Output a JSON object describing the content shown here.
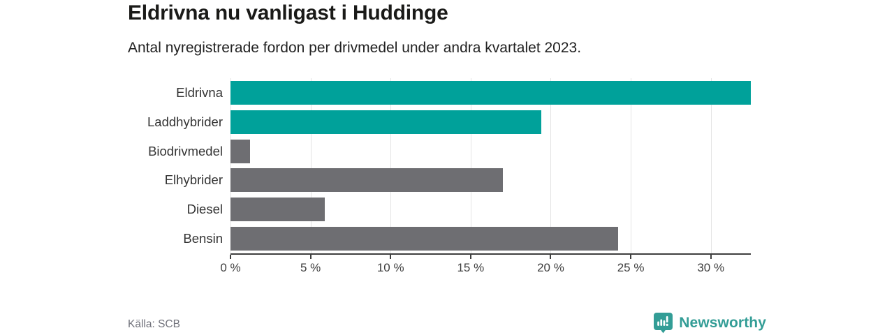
{
  "header": {
    "title": "Eldrivna nu vanligast i Huddinge",
    "subtitle": "Antal nyregistrerade fordon per drivmedel under andra kvartalet 2023."
  },
  "chart_data": {
    "type": "bar",
    "orientation": "horizontal",
    "title": "Eldrivna nu vanligast i Huddinge",
    "subtitle": "Antal nyregistrerade fordon per drivmedel under andra kvartalet 2023.",
    "categories": [
      "Eldrivna",
      "Laddhybrider",
      "Biodrivmedel",
      "Elhybrider",
      "Diesel",
      "Bensin"
    ],
    "values": [
      32.5,
      19.4,
      1.2,
      17.0,
      5.9,
      24.2
    ],
    "unit": "%",
    "bar_colors": [
      "#00a19a",
      "#00a19a",
      "#6e6e72",
      "#6e6e72",
      "#6e6e72",
      "#6e6e72"
    ],
    "xlabel": "",
    "ylabel": "",
    "x_axis": {
      "min": 0,
      "max": 32.5,
      "ticks": [
        0,
        5,
        10,
        15,
        20,
        25,
        30
      ],
      "tick_labels": [
        "0 %",
        "5 %",
        "10 %",
        "15 %",
        "20 %",
        "25 %",
        "30 %"
      ]
    },
    "grid": "vertical",
    "legend": "none"
  },
  "footer": {
    "source": "Källa: SCB",
    "logo_text": "Newsworthy"
  },
  "colors": {
    "accent_teal": "#00a19a",
    "bar_gray": "#6e6e72",
    "logo_teal": "#339d96",
    "gridline": "#e4e4e4",
    "axis": "#3f3f3f",
    "background": "#ffffff"
  }
}
